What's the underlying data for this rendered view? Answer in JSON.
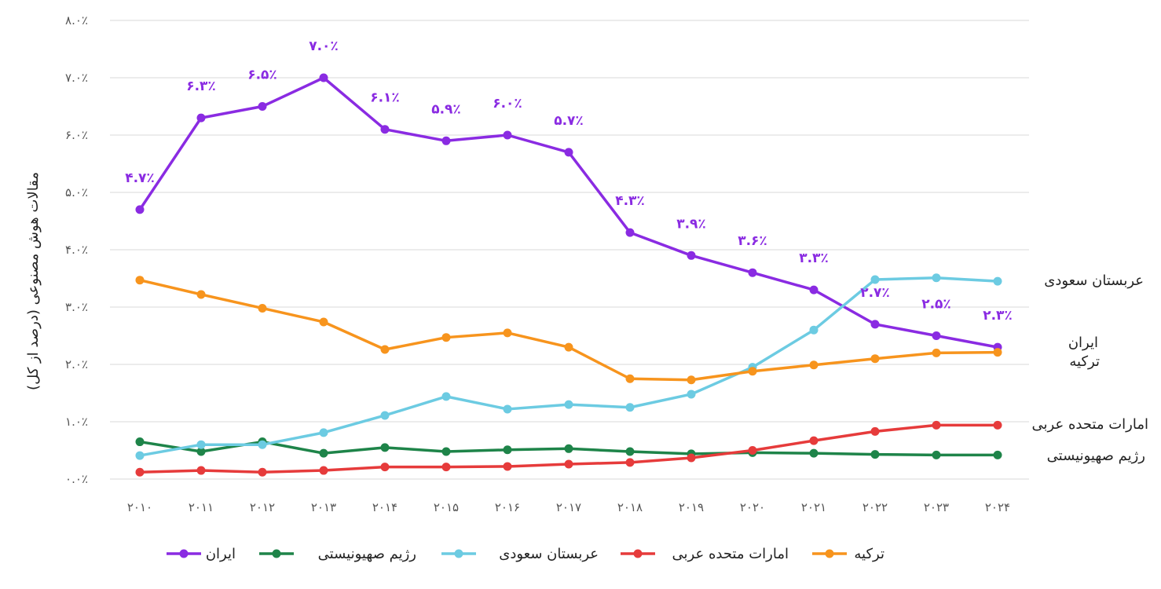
{
  "chart_data": {
    "type": "line",
    "title": "",
    "ylabel": "مقالات هوش مصنوعی (درصد از کل)",
    "xlabel": "",
    "ylim": [
      0,
      8
    ],
    "y_ticks": [
      "۰.۰٪",
      "۱.۰٪",
      "۲.۰٪",
      "۳.۰٪",
      "۴.۰٪",
      "۵.۰٪",
      "۶.۰٪",
      "۷.۰٪",
      "۸.۰٪"
    ],
    "y_tick_values": [
      0,
      1,
      2,
      3,
      4,
      5,
      6,
      7,
      8
    ],
    "categories": [
      "۲۰۱۰",
      "۲۰۱۱",
      "۲۰۱۲",
      "۲۰۱۳",
      "۲۰۱۴",
      "۲۰۱۵",
      "۲۰۱۶",
      "۲۰۱۷",
      "۲۰۱۸",
      "۲۰۱۹",
      "۲۰۲۰",
      "۲۰۲۱",
      "۲۰۲۲",
      "۲۰۲۳",
      "۲۰۲۴"
    ],
    "grid": true,
    "legend_position": "bottom",
    "series": [
      {
        "name": "ایران",
        "color": "#8a2be2",
        "values": [
          4.7,
          6.3,
          6.5,
          7.0,
          6.1,
          5.9,
          6.0,
          5.7,
          4.3,
          3.9,
          3.6,
          3.3,
          2.7,
          2.5,
          2.3
        ],
        "data_labels": [
          "۴.۷٪",
          "۶.۳٪",
          "۶.۵٪",
          "۷.۰٪",
          "۶.۱٪",
          "۵.۹٪",
          "۶.۰٪",
          "۵.۷٪",
          "۴.۳٪",
          "۳.۹٪",
          "۳.۶٪",
          "۳.۳٪",
          "۲.۷٪",
          "۲.۵٪",
          "۲.۳٪"
        ],
        "end_label": "ایران"
      },
      {
        "name": "رژیم صهیونیستی",
        "color": "#1e8449",
        "values": [
          0.65,
          0.48,
          0.65,
          0.45,
          0.55,
          0.48,
          0.51,
          0.53,
          0.48,
          0.44,
          0.46,
          0.45,
          0.43,
          0.42,
          0.42
        ],
        "end_label": "رژیم صهیونیستی"
      },
      {
        "name": "عربستان سعودی",
        "color": "#6ccbe2",
        "values": [
          0.41,
          0.6,
          0.6,
          0.81,
          1.11,
          1.44,
          1.22,
          1.3,
          1.25,
          1.48,
          1.95,
          2.6,
          3.48,
          3.51,
          3.45
        ],
        "end_label": "عربستان سعودی"
      },
      {
        "name": "امارات متحده عربی",
        "color": "#e63b3b",
        "values": [
          0.12,
          0.15,
          0.12,
          0.15,
          0.21,
          0.21,
          0.22,
          0.26,
          0.29,
          0.37,
          0.5,
          0.67,
          0.83,
          0.94,
          0.94
        ],
        "end_label": "امارات متحده عربی"
      },
      {
        "name": "ترکیه",
        "color": "#f7941d",
        "values": [
          3.47,
          3.22,
          2.98,
          2.74,
          2.26,
          2.47,
          2.55,
          2.3,
          1.75,
          1.73,
          1.88,
          1.99,
          2.1,
          2.2,
          2.21
        ],
        "end_label": "ترکیه"
      }
    ]
  }
}
